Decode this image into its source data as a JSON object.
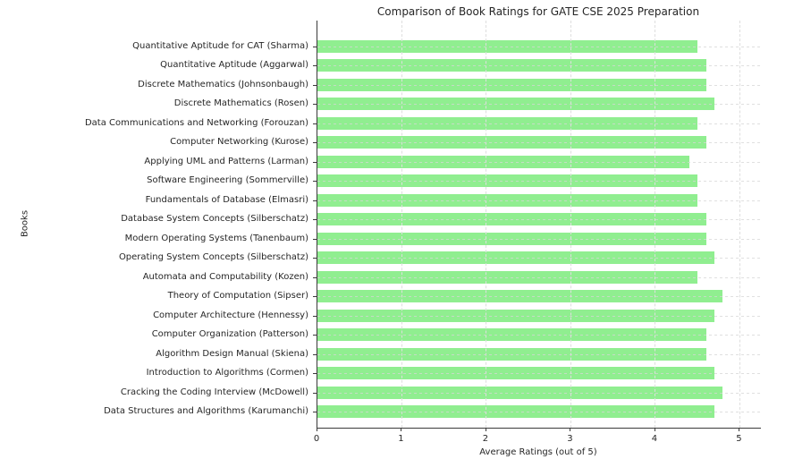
{
  "chart_data": {
    "type": "bar",
    "orientation": "horizontal",
    "title": "Comparison of Book Ratings for GATE CSE 2025 Preparation",
    "xlabel": "Average Ratings (out of 5)",
    "ylabel": "Books",
    "xlim": [
      0,
      5.25
    ],
    "xticks": [
      0,
      1,
      2,
      3,
      4,
      5
    ],
    "grid": "dashed-both-axes",
    "legend": "none",
    "categories": [
      "Quantitative Aptitude for CAT (Sharma)",
      "Quantitative Aptitude (Aggarwal)",
      "Discrete Mathematics (Johnsonbaugh)",
      "Discrete Mathematics (Rosen)",
      "Data Communications and Networking (Forouzan)",
      "Computer Networking (Kurose)",
      "Applying UML and Patterns (Larman)",
      "Software Engineering (Sommerville)",
      "Fundamentals of Database (Elmasri)",
      "Database System Concepts (Silberschatz)",
      "Modern Operating Systems (Tanenbaum)",
      "Operating System Concepts (Silberschatz)",
      "Automata and Computability (Kozen)",
      "Theory of Computation (Sipser)",
      "Computer Architecture (Hennessy)",
      "Computer Organization (Patterson)",
      "Algorithm Design Manual (Skiena)",
      "Introduction to Algorithms (Cormen)",
      "Cracking the Coding Interview (McDowell)",
      "Data Structures and Algorithms (Karumanchi)"
    ],
    "values": [
      4.5,
      4.6,
      4.6,
      4.7,
      4.5,
      4.6,
      4.4,
      4.5,
      4.5,
      4.6,
      4.6,
      4.7,
      4.5,
      4.8,
      4.7,
      4.6,
      4.6,
      4.7,
      4.8,
      4.7
    ],
    "colors": {
      "bar": "#90EE90",
      "grid": "#dedede",
      "spine": "#3a3a3a",
      "text": "#262626",
      "background": "#ffffff"
    }
  }
}
